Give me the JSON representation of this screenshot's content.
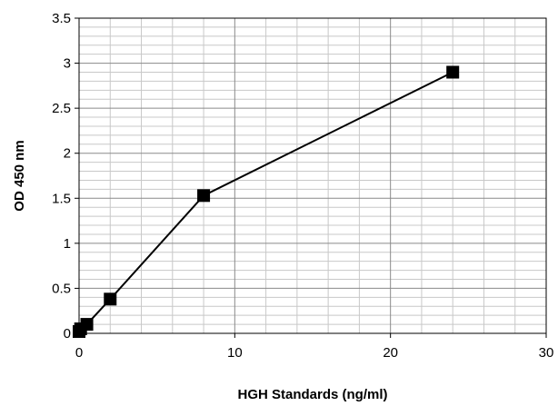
{
  "chart_data": {
    "type": "line",
    "title": "",
    "xlabel": "HGH Standards (ng/ml)",
    "ylabel": "OD 450 nm",
    "xlim": [
      0,
      30
    ],
    "ylim": [
      0,
      3.5
    ],
    "x_major_ticks": [
      "0",
      "10",
      "20",
      "30"
    ],
    "y_major_ticks": [
      "0",
      "0.5",
      "1",
      "1.5",
      "2",
      "2.5",
      "3",
      "3.5"
    ],
    "grid": true,
    "legend": "none",
    "series": [
      {
        "x": [
          0,
          0.1,
          0.5,
          2,
          8,
          24
        ],
        "y": [
          0.02,
          0.05,
          0.1,
          0.38,
          1.53,
          2.9
        ],
        "marker": "square",
        "color": "#000000"
      }
    ]
  }
}
